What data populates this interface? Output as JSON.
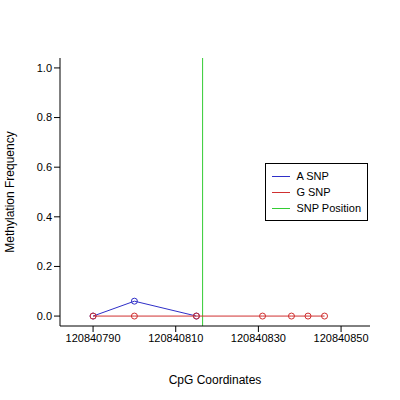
{
  "chart_data": {
    "type": "line",
    "xlabel": "CpG Coordinates",
    "ylabel": "Methylation Frequency",
    "xlim": [
      120840782,
      120840857
    ],
    "xticks": [
      120840790,
      120840810,
      120840830,
      120840850
    ],
    "ylim": [
      -0.04,
      1.04
    ],
    "yticks": [
      {
        "value": 0,
        "label": "0.0"
      },
      0.2,
      0.4,
      0.6,
      0.8,
      {
        "value": 1,
        "label": "1.0"
      }
    ],
    "legend": "right",
    "series": [
      {
        "name": "A SNP",
        "color": "#2f2fc8",
        "marker": "circle",
        "line_style": "solid",
        "x": [
          120840790,
          120840800,
          120840815
        ],
        "values": [
          0,
          0.06,
          0
        ]
      },
      {
        "name": "G SNP",
        "color": "#d03030",
        "marker": "circle",
        "line_style": "solid",
        "x": [
          120840790,
          120840800,
          120840815,
          120840831,
          120840838,
          120840842,
          120840846
        ],
        "values": [
          0,
          0,
          0,
          0,
          0,
          0,
          0
        ]
      }
    ],
    "snp_position": {
      "name": "SNP Position",
      "x": 120840816.5,
      "color": "#33cc33"
    }
  }
}
